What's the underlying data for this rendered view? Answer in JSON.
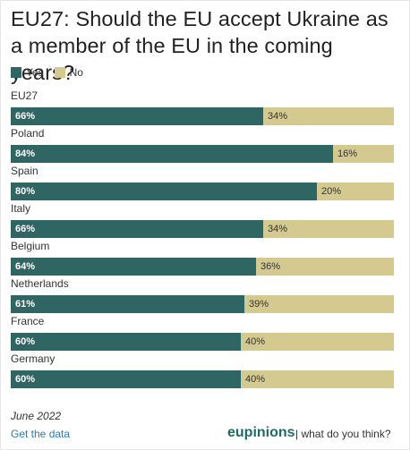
{
  "title": "EU27: Should the EU accept Ukraine as a member of the EU in the coming years?",
  "legend": {
    "yes_label": "Yes",
    "no_label": "No"
  },
  "colors": {
    "yes": "#2f6562",
    "no": "#d4c98e"
  },
  "chart_data": {
    "type": "bar",
    "orientation": "horizontal",
    "stacked": true,
    "title": "EU27: Should the EU accept Ukraine as a member of the EU in the coming years?",
    "categories": [
      "EU27",
      "Poland",
      "Spain",
      "Italy",
      "Belgium",
      "Netherlands",
      "France",
      "Germany"
    ],
    "series": [
      {
        "name": "Yes",
        "values": [
          66,
          84,
          80,
          66,
          64,
          61,
          60,
          60
        ],
        "labels": [
          "66%",
          "84%",
          "80%",
          "66%",
          "64%",
          "61%",
          "60%",
          "60%"
        ]
      },
      {
        "name": "No",
        "values": [
          34,
          16,
          20,
          34,
          36,
          39,
          40,
          40
        ],
        "labels": [
          "34%",
          "16%",
          "20%",
          "34%",
          "36%",
          "39%",
          "40%",
          "40%"
        ]
      }
    ],
    "xlim": [
      0,
      100
    ],
    "legend_position": "top-left"
  },
  "footer": {
    "date": "June 2022",
    "link_label": "Get the data",
    "brand": "eupinions",
    "tagline": "| what do you think?"
  }
}
